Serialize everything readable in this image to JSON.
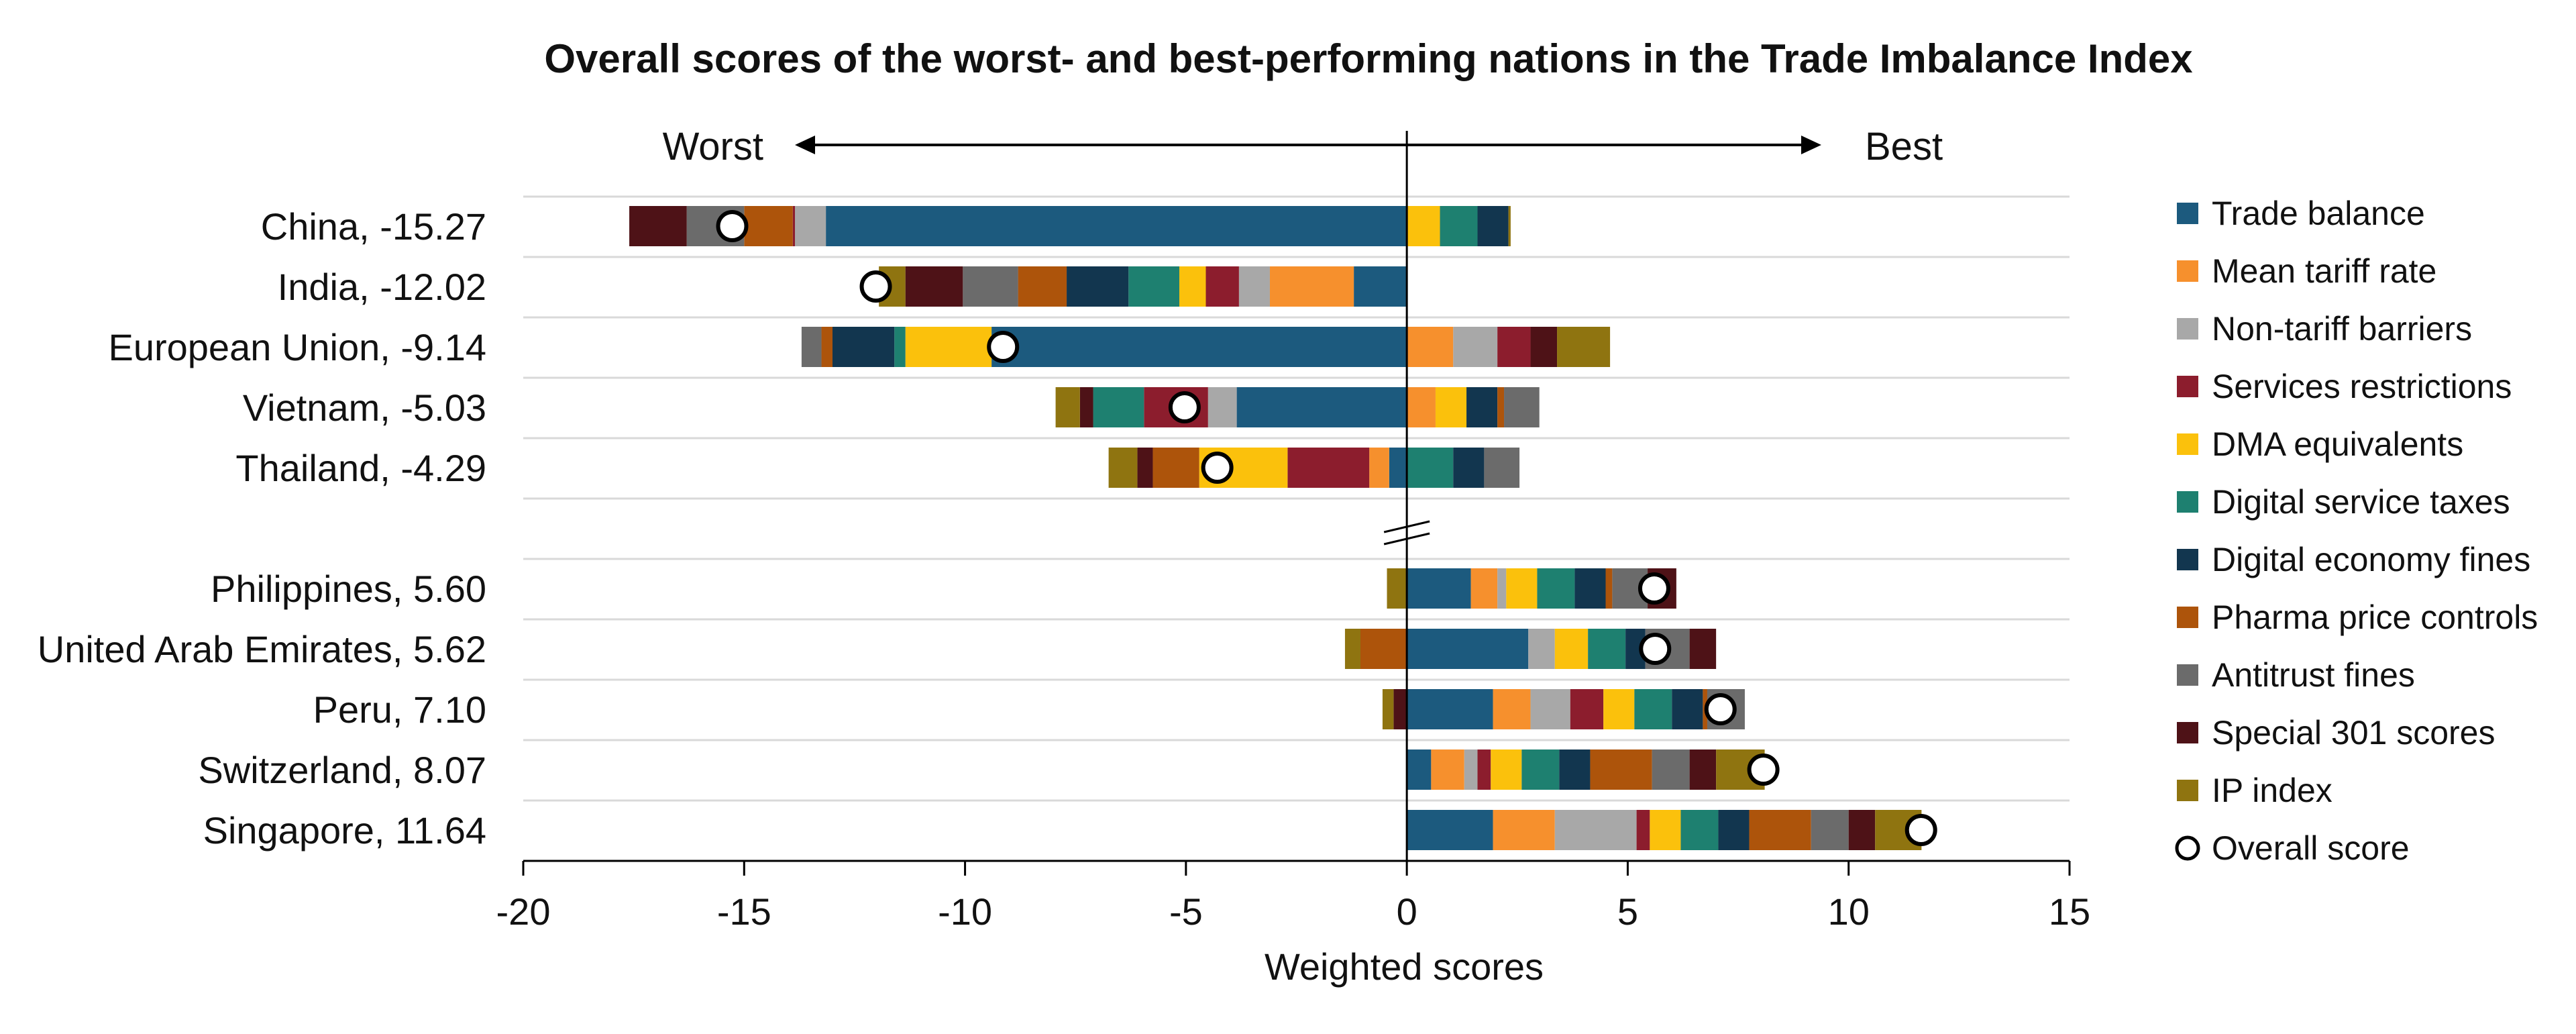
{
  "chart_data": {
    "type": "bar",
    "title": "Overall scores of the worst- and best-performing nations in the Trade Imbalance Index",
    "xlabel": "Weighted scores",
    "direction_left_label": "Worst",
    "direction_right_label": "Best",
    "xlim": [
      -20,
      15
    ],
    "xticks": [
      -20,
      -15,
      -10,
      -5,
      0,
      5,
      10,
      15
    ],
    "grid": "horizontal",
    "legend_position": "right",
    "stacked": "diverging",
    "component_names": [
      "Trade balance",
      "Mean tariff rate",
      "Non-tariff barriers",
      "Services restrictions",
      "DMA equivalents",
      "Digital service taxes",
      "Digital economy fines",
      "Pharma price controls",
      "Antitrust fines",
      "Special 301 scores",
      "IP index"
    ],
    "component_colors": [
      "#1c5a7e",
      "#f6902d",
      "#a8a8a8",
      "#8c1d2d",
      "#fbc10c",
      "#1e8070",
      "#12364f",
      "#ad540b",
      "#6b6b6b",
      "#4e1217",
      "#8f7410"
    ],
    "overall_label": "Overall score",
    "categories": [
      {
        "name": "China",
        "label": "China, -15.27",
        "overall": -15.27,
        "neg": [
          [
            "Trade balance",
            -13.15
          ],
          [
            "Non-tariff barriers",
            -0.7
          ],
          [
            "Services restrictions",
            -0.05
          ],
          [
            "Pharma price controls",
            -1.1
          ],
          [
            "Antitrust fines",
            -1.3
          ],
          [
            "Special 301 scores",
            -1.3
          ]
        ],
        "pos": [
          [
            "DMA equivalents",
            0.75
          ],
          [
            "Digital service taxes",
            0.85
          ],
          [
            "Digital economy fines",
            0.7
          ],
          [
            "IP index",
            0.05
          ]
        ]
      },
      {
        "name": "India",
        "label": "India, -12.02",
        "overall": -12.02,
        "neg": [
          [
            "Trade balance",
            -1.2
          ],
          [
            "Mean tariff rate",
            -1.9
          ],
          [
            "Non-tariff barriers",
            -0.7
          ],
          [
            "Services restrictions",
            -0.75
          ],
          [
            "DMA equivalents",
            -0.6
          ],
          [
            "Digital service taxes",
            -1.15
          ],
          [
            "Digital economy fines",
            -1.4
          ],
          [
            "Pharma price controls",
            -1.1
          ],
          [
            "Antitrust fines",
            -1.25
          ],
          [
            "Special 301 scores",
            -1.3
          ],
          [
            "IP index",
            -0.6
          ]
        ],
        "pos": []
      },
      {
        "name": "European Union",
        "label": "European Union, -9.14",
        "overall": -9.14,
        "neg": [
          [
            "Trade balance",
            -9.4
          ],
          [
            "DMA equivalents",
            -1.95
          ],
          [
            "Digital service taxes",
            -0.25
          ],
          [
            "Digital economy fines",
            -1.4
          ],
          [
            "Pharma price controls",
            -0.25
          ],
          [
            "Antitrust fines",
            -0.45
          ]
        ],
        "pos": [
          [
            "Mean tariff rate",
            1.05
          ],
          [
            "Non-tariff barriers",
            1.0
          ],
          [
            "Services restrictions",
            0.75
          ],
          [
            "Special 301 scores",
            0.6
          ],
          [
            "IP index",
            1.2
          ]
        ]
      },
      {
        "name": "Vietnam",
        "label": "Vietnam, -5.03",
        "overall": -5.03,
        "neg": [
          [
            "Trade balance",
            -3.85
          ],
          [
            "Non-tariff barriers",
            -0.65
          ],
          [
            "Services restrictions",
            -1.45
          ],
          [
            "Digital service taxes",
            -1.15
          ],
          [
            "Special 301 scores",
            -0.3
          ],
          [
            "IP index",
            -0.55
          ]
        ],
        "pos": [
          [
            "Mean tariff rate",
            0.65
          ],
          [
            "DMA equivalents",
            0.7
          ],
          [
            "Digital economy fines",
            0.7
          ],
          [
            "Pharma price controls",
            0.15
          ],
          [
            "Antitrust fines",
            0.8
          ]
        ]
      },
      {
        "name": "Thailand",
        "label": "Thailand, -4.29",
        "overall": -4.29,
        "neg": [
          [
            "Trade balance",
            -0.4
          ],
          [
            "Mean tariff rate",
            -0.45
          ],
          [
            "Services restrictions",
            -1.85
          ],
          [
            "DMA equivalents",
            -2.0
          ],
          [
            "Pharma price controls",
            -1.05
          ],
          [
            "Special 301 scores",
            -0.35
          ],
          [
            "IP index",
            -0.65
          ]
        ],
        "pos": [
          [
            "Digital service taxes",
            1.05
          ],
          [
            "Digital economy fines",
            0.7
          ],
          [
            "Antitrust fines",
            0.8
          ]
        ]
      },
      {
        "name": "Philippines",
        "label": "Philippines, 5.60",
        "overall": 5.6,
        "neg": [
          [
            "IP index",
            -0.45
          ]
        ],
        "pos": [
          [
            "Trade balance",
            1.45
          ],
          [
            "Mean tariff rate",
            0.6
          ],
          [
            "Non-tariff barriers",
            0.2
          ],
          [
            "DMA equivalents",
            0.7
          ],
          [
            "Digital service taxes",
            0.85
          ],
          [
            "Digital economy fines",
            0.7
          ],
          [
            "Pharma price controls",
            0.15
          ],
          [
            "Antitrust fines",
            0.8
          ],
          [
            "Special 301 scores",
            0.65
          ]
        ]
      },
      {
        "name": "United Arab Emirates",
        "label": "United Arab Emirates, 5.62",
        "overall": 5.62,
        "neg": [
          [
            "Pharma price controls",
            -1.05
          ],
          [
            "IP index",
            -0.35
          ]
        ],
        "pos": [
          [
            "Trade balance",
            2.75
          ],
          [
            "Non-tariff barriers",
            0.6
          ],
          [
            "DMA equivalents",
            0.75
          ],
          [
            "Digital service taxes",
            0.85
          ],
          [
            "Digital economy fines",
            0.45
          ],
          [
            "Antitrust fines",
            1.0
          ],
          [
            "Special 301 scores",
            0.6
          ]
        ]
      },
      {
        "name": "Peru",
        "label": "Peru, 7.10",
        "overall": 7.1,
        "neg": [
          [
            "Special 301 scores",
            -0.3
          ],
          [
            "IP index",
            -0.25
          ]
        ],
        "pos": [
          [
            "Trade balance",
            1.95
          ],
          [
            "Mean tariff rate",
            0.85
          ],
          [
            "Non-tariff barriers",
            0.9
          ],
          [
            "Services restrictions",
            0.75
          ],
          [
            "DMA equivalents",
            0.7
          ],
          [
            "Digital service taxes",
            0.85
          ],
          [
            "Digital economy fines",
            0.7
          ],
          [
            "Pharma price controls",
            0.1
          ],
          [
            "Antitrust fines",
            0.85
          ]
        ]
      },
      {
        "name": "Switzerland",
        "label": "Switzerland, 8.07",
        "overall": 8.07,
        "pos": [
          [
            "Trade balance",
            0.55
          ],
          [
            "Mean tariff rate",
            0.75
          ],
          [
            "Non-tariff barriers",
            0.3
          ],
          [
            "Services restrictions",
            0.3
          ],
          [
            "DMA equivalents",
            0.7
          ],
          [
            "Digital service taxes",
            0.85
          ],
          [
            "Digital economy fines",
            0.7
          ],
          [
            "Pharma price controls",
            1.4
          ],
          [
            "Antitrust fines",
            0.85
          ],
          [
            "Special 301 scores",
            0.6
          ],
          [
            "IP index",
            1.1
          ]
        ],
        "neg": []
      },
      {
        "name": "Singapore",
        "label": "Singapore, 11.64",
        "overall": 11.64,
        "neg": [],
        "pos": [
          [
            "Trade balance",
            1.95
          ],
          [
            "Mean tariff rate",
            1.4
          ],
          [
            "Non-tariff barriers",
            1.85
          ],
          [
            "Services restrictions",
            0.3
          ],
          [
            "DMA equivalents",
            0.7
          ],
          [
            "Digital service taxes",
            0.85
          ],
          [
            "Digital economy fines",
            0.7
          ],
          [
            "Pharma price controls",
            1.4
          ],
          [
            "Antitrust fines",
            0.85
          ],
          [
            "Special 301 scores",
            0.6
          ],
          [
            "IP index",
            1.05
          ]
        ]
      }
    ]
  }
}
